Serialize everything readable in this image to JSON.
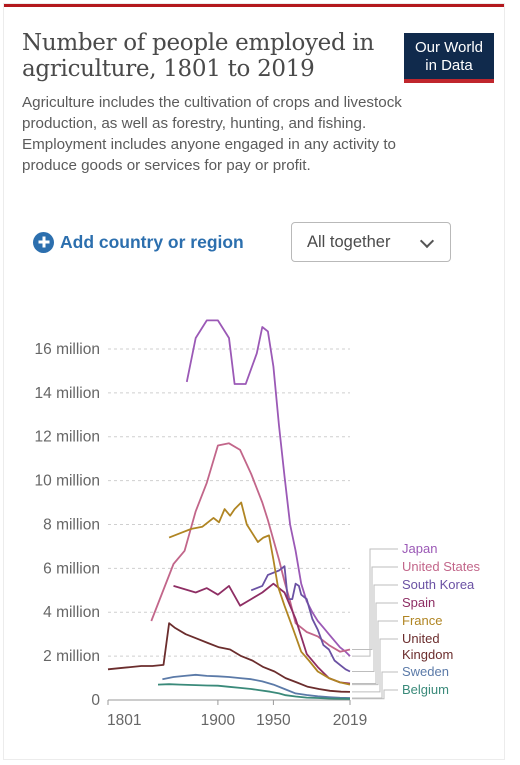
{
  "header": {
    "title": "Number of people employed in agriculture, 1801 to 2019",
    "subtitle": "Agriculture includes the cultivation of crops and livestock production, as well as forestry, hunting, and fishing. Employment includes anyone engaged in any activity to produce goods or services for pay or profit.",
    "logo": {
      "line1": "Our World",
      "line2": "in Data",
      "background": "#102a4c",
      "accent": "#c0262d"
    }
  },
  "controls": {
    "add_label": "Add country or region",
    "add_icon": "plus-circle-icon",
    "dropdown_label": "All together",
    "dropdown_icon": "chevron-down-icon"
  },
  "chart_data": {
    "type": "line",
    "title": "Number of people employed in agriculture, 1801 to 2019",
    "xlabel": "",
    "ylabel": "",
    "xlim": [
      1801,
      2019
    ],
    "ylim": [
      0,
      17000000
    ],
    "x_ticks": [
      1801,
      1900,
      1950,
      2019
    ],
    "y_ticks": [
      {
        "value": 0,
        "label": "0"
      },
      {
        "value": 2000000,
        "label": "2 million"
      },
      {
        "value": 4000000,
        "label": "4 million"
      },
      {
        "value": 6000000,
        "label": "6 million"
      },
      {
        "value": 8000000,
        "label": "8 million"
      },
      {
        "value": 10000000,
        "label": "10 million"
      },
      {
        "value": 12000000,
        "label": "12 million"
      },
      {
        "value": 14000000,
        "label": "14 million"
      },
      {
        "value": 16000000,
        "label": "16 million"
      }
    ],
    "grid": true,
    "legend": "right, labels at line ends",
    "series": [
      {
        "name": "Japan",
        "color": "#9b59b6",
        "points": [
          [
            1872,
            14500000
          ],
          [
            1880,
            16500000
          ],
          [
            1890,
            17300000
          ],
          [
            1900,
            17300000
          ],
          [
            1910,
            16500000
          ],
          [
            1915,
            14400000
          ],
          [
            1925,
            14400000
          ],
          [
            1935,
            15800000
          ],
          [
            1940,
            17000000
          ],
          [
            1945,
            16800000
          ],
          [
            1950,
            15200000
          ],
          [
            1955,
            12500000
          ],
          [
            1960,
            10200000
          ],
          [
            1965,
            8000000
          ],
          [
            1970,
            6800000
          ],
          [
            1975,
            5300000
          ],
          [
            1980,
            4500000
          ],
          [
            1985,
            4000000
          ],
          [
            1990,
            3600000
          ],
          [
            1995,
            3300000
          ],
          [
            2000,
            3000000
          ],
          [
            2005,
            2700000
          ],
          [
            2010,
            2400000
          ],
          [
            2015,
            2200000
          ],
          [
            2019,
            2000000
          ]
        ]
      },
      {
        "name": "United States",
        "color": "#c2668a",
        "points": [
          [
            1840,
            3600000
          ],
          [
            1850,
            4900000
          ],
          [
            1860,
            6200000
          ],
          [
            1870,
            6800000
          ],
          [
            1880,
            8600000
          ],
          [
            1890,
            9900000
          ],
          [
            1900,
            11600000
          ],
          [
            1910,
            11700000
          ],
          [
            1920,
            11400000
          ],
          [
            1930,
            10300000
          ],
          [
            1940,
            9000000
          ],
          [
            1945,
            8200000
          ],
          [
            1950,
            7300000
          ],
          [
            1955,
            6400000
          ],
          [
            1960,
            5400000
          ],
          [
            1965,
            4500000
          ],
          [
            1970,
            3500000
          ],
          [
            1975,
            3300000
          ],
          [
            1980,
            3100000
          ],
          [
            1990,
            2900000
          ],
          [
            2000,
            2500000
          ],
          [
            2010,
            2200000
          ],
          [
            2019,
            2300000
          ]
        ]
      },
      {
        "name": "South Korea",
        "color": "#6a51a3",
        "points": [
          [
            1930,
            5000000
          ],
          [
            1940,
            5200000
          ],
          [
            1945,
            5700000
          ],
          [
            1955,
            5900000
          ],
          [
            1960,
            6100000
          ],
          [
            1963,
            4600000
          ],
          [
            1967,
            4600000
          ],
          [
            1970,
            5300000
          ],
          [
            1973,
            5200000
          ],
          [
            1975,
            4800000
          ],
          [
            1980,
            4600000
          ],
          [
            1985,
            3700000
          ],
          [
            1990,
            3200000
          ],
          [
            1995,
            2500000
          ],
          [
            2000,
            2300000
          ],
          [
            2005,
            1800000
          ],
          [
            2010,
            1600000
          ],
          [
            2015,
            1400000
          ],
          [
            2019,
            1300000
          ]
        ]
      },
      {
        "name": "Spain",
        "color": "#8e2e64",
        "points": [
          [
            1860,
            5200000
          ],
          [
            1880,
            4900000
          ],
          [
            1890,
            5100000
          ],
          [
            1900,
            4800000
          ],
          [
            1910,
            5200000
          ],
          [
            1920,
            4300000
          ],
          [
            1930,
            4600000
          ],
          [
            1940,
            4900000
          ],
          [
            1950,
            5300000
          ],
          [
            1960,
            4900000
          ],
          [
            1970,
            3700000
          ],
          [
            1980,
            2100000
          ],
          [
            1990,
            1500000
          ],
          [
            2000,
            1000000
          ],
          [
            2010,
            800000
          ],
          [
            2019,
            750000
          ]
        ]
      },
      {
        "name": "France",
        "color": "#b08523",
        "points": [
          [
            1856,
            7400000
          ],
          [
            1866,
            7600000
          ],
          [
            1876,
            7800000
          ],
          [
            1886,
            7900000
          ],
          [
            1896,
            8300000
          ],
          [
            1901,
            8100000
          ],
          [
            1906,
            8700000
          ],
          [
            1911,
            8400000
          ],
          [
            1915,
            8700000
          ],
          [
            1921,
            9000000
          ],
          [
            1926,
            8000000
          ],
          [
            1931,
            7600000
          ],
          [
            1936,
            7200000
          ],
          [
            1941,
            7400000
          ],
          [
            1946,
            7500000
          ],
          [
            1950,
            6400000
          ],
          [
            1954,
            5200000
          ],
          [
            1960,
            4300000
          ],
          [
            1968,
            3200000
          ],
          [
            1975,
            2200000
          ],
          [
            1982,
            1800000
          ],
          [
            1990,
            1300000
          ],
          [
            2000,
            1000000
          ],
          [
            2010,
            800000
          ],
          [
            2019,
            700000
          ]
        ]
      },
      {
        "name": "United Kingdom",
        "color": "#6b2d2d",
        "points": [
          [
            1801,
            1400000
          ],
          [
            1811,
            1450000
          ],
          [
            1821,
            1500000
          ],
          [
            1831,
            1550000
          ],
          [
            1841,
            1550000
          ],
          [
            1851,
            1600000
          ],
          [
            1856,
            3500000
          ],
          [
            1861,
            3300000
          ],
          [
            1871,
            3000000
          ],
          [
            1881,
            2800000
          ],
          [
            1891,
            2600000
          ],
          [
            1901,
            2400000
          ],
          [
            1911,
            2300000
          ],
          [
            1921,
            2000000
          ],
          [
            1931,
            1800000
          ],
          [
            1941,
            1500000
          ],
          [
            1951,
            1300000
          ],
          [
            1961,
            1000000
          ],
          [
            1971,
            800000
          ],
          [
            1981,
            600000
          ],
          [
            1991,
            500000
          ],
          [
            2001,
            420000
          ],
          [
            2011,
            380000
          ],
          [
            2019,
            370000
          ]
        ]
      },
      {
        "name": "Sweden",
        "color": "#5b7aa8",
        "points": [
          [
            1850,
            950000
          ],
          [
            1860,
            1050000
          ],
          [
            1870,
            1100000
          ],
          [
            1880,
            1150000
          ],
          [
            1890,
            1100000
          ],
          [
            1900,
            1080000
          ],
          [
            1910,
            1050000
          ],
          [
            1920,
            1000000
          ],
          [
            1930,
            950000
          ],
          [
            1940,
            850000
          ],
          [
            1950,
            700000
          ],
          [
            1960,
            500000
          ],
          [
            1970,
            300000
          ],
          [
            1980,
            230000
          ],
          [
            1990,
            170000
          ],
          [
            2000,
            130000
          ],
          [
            2010,
            100000
          ],
          [
            2019,
            90000
          ]
        ]
      },
      {
        "name": "Belgium",
        "color": "#3a8a7a",
        "points": [
          [
            1846,
            700000
          ],
          [
            1856,
            720000
          ],
          [
            1866,
            700000
          ],
          [
            1880,
            680000
          ],
          [
            1890,
            660000
          ],
          [
            1900,
            650000
          ],
          [
            1910,
            600000
          ],
          [
            1920,
            550000
          ],
          [
            1930,
            500000
          ],
          [
            1937,
            450000
          ],
          [
            1947,
            380000
          ],
          [
            1955,
            300000
          ],
          [
            1961,
            220000
          ],
          [
            1970,
            160000
          ],
          [
            1980,
            110000
          ],
          [
            1990,
            90000
          ],
          [
            2000,
            70000
          ],
          [
            2010,
            60000
          ],
          [
            2019,
            55000
          ]
        ]
      }
    ]
  }
}
